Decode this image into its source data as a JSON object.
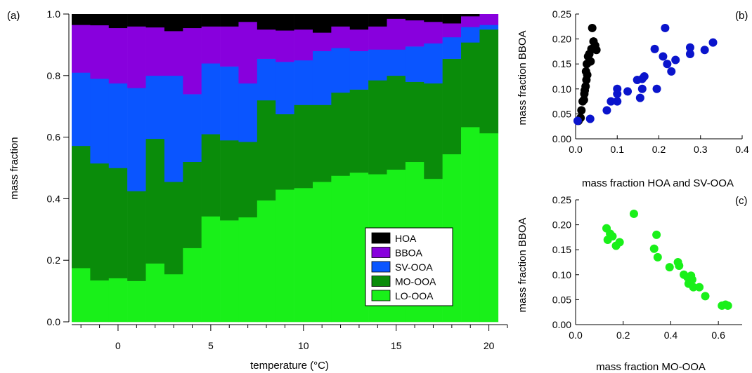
{
  "chart_data": [
    {
      "panel": "(a)",
      "type": "area",
      "stacked": true,
      "xlabel": "temperature (°C)",
      "ylabel": "mass fraction",
      "xlim": [
        -2.5,
        21
      ],
      "ylim": [
        0,
        1
      ],
      "xticks": [
        0,
        5,
        10,
        15,
        20
      ],
      "yticks": [
        0.0,
        0.2,
        0.4,
        0.6,
        0.8,
        1.0
      ],
      "ytick_labels": [
        "0.0",
        "0.2",
        "0.4",
        "0.6",
        "0.8",
        "1.0"
      ],
      "x": [
        -2,
        -1,
        0,
        1,
        2,
        3,
        4,
        5,
        6,
        7,
        8,
        9,
        10,
        11,
        12,
        13,
        14,
        15,
        16,
        17,
        18,
        19,
        20
      ],
      "series": [
        {
          "name": "LO-OOA",
          "color": "#19f019",
          "values": [
            0.175,
            0.135,
            0.142,
            0.133,
            0.19,
            0.155,
            0.24,
            0.343,
            0.33,
            0.34,
            0.395,
            0.43,
            0.435,
            0.455,
            0.475,
            0.485,
            0.48,
            0.495,
            0.52,
            0.465,
            0.545,
            0.633,
            0.613
          ]
        },
        {
          "name": "MO-OOA",
          "color": "#0a8c0a",
          "values": [
            0.397,
            0.38,
            0.358,
            0.292,
            0.405,
            0.3,
            0.28,
            0.267,
            0.26,
            0.245,
            0.325,
            0.245,
            0.27,
            0.25,
            0.27,
            0.27,
            0.305,
            0.305,
            0.26,
            0.31,
            0.31,
            0.275,
            0.337
          ]
        },
        {
          "name": "SV-OOA",
          "color": "#0a55ff",
          "values": [
            0.238,
            0.275,
            0.275,
            0.335,
            0.205,
            0.345,
            0.22,
            0.23,
            0.24,
            0.19,
            0.135,
            0.17,
            0.145,
            0.175,
            0.145,
            0.125,
            0.1,
            0.085,
            0.115,
            0.13,
            0.07,
            0.05,
            0.015
          ]
        },
        {
          "name": "BBOA",
          "color": "#8800dd",
          "values": [
            0.155,
            0.174,
            0.18,
            0.2,
            0.157,
            0.145,
            0.215,
            0.12,
            0.13,
            0.2,
            0.095,
            0.102,
            0.1,
            0.06,
            0.07,
            0.07,
            0.075,
            0.1,
            0.085,
            0.07,
            0.045,
            0.035,
            0.035
          ]
        },
        {
          "name": "HOA",
          "color": "#000000",
          "values": [
            0.035,
            0.036,
            0.045,
            0.04,
            0.043,
            0.055,
            0.045,
            0.04,
            0.04,
            0.025,
            0.05,
            0.053,
            0.05,
            0.06,
            0.04,
            0.05,
            0.04,
            0.015,
            0.02,
            0.025,
            0.03,
            0.007,
            0.0
          ]
        }
      ],
      "legend": {
        "position": "bottom-right",
        "order": [
          "HOA",
          "BBOA",
          "SV-OOA",
          "MO-OOA",
          "LO-OOA"
        ]
      }
    },
    {
      "panel": "(b)",
      "type": "scatter",
      "xlabel": "mass fraction HOA and SV-OOA",
      "ylabel": "mass fraction BBOA",
      "xlim": [
        0,
        0.4
      ],
      "ylim": [
        0,
        0.25
      ],
      "xticks": [
        0.0,
        0.1,
        0.2,
        0.3,
        0.4
      ],
      "xtick_labels": [
        "0.0",
        "0.1",
        "0.2",
        "0.3",
        "0.4"
      ],
      "yticks": [
        0.0,
        0.05,
        0.1,
        0.15,
        0.2,
        0.25
      ],
      "ytick_labels": [
        "0.00",
        "0.05",
        "0.10",
        "0.15",
        "0.20",
        "0.25"
      ],
      "series": [
        {
          "name": "HOA",
          "color": "#000000",
          "points": [
            [
              0.007,
              0.036
            ],
            [
              0.012,
              0.042
            ],
            [
              0.014,
              0.057
            ],
            [
              0.017,
              0.075
            ],
            [
              0.02,
              0.078
            ],
            [
              0.021,
              0.09
            ],
            [
              0.022,
              0.097
            ],
            [
              0.024,
              0.105
            ],
            [
              0.026,
              0.118
            ],
            [
              0.025,
              0.135
            ],
            [
              0.028,
              0.128
            ],
            [
              0.027,
              0.15
            ],
            [
              0.03,
              0.165
            ],
            [
              0.033,
              0.17
            ],
            [
              0.036,
              0.155
            ],
            [
              0.038,
              0.18
            ],
            [
              0.041,
              0.18
            ],
            [
              0.043,
              0.195
            ],
            [
              0.047,
              0.187
            ],
            [
              0.05,
              0.178
            ],
            [
              0.04,
              0.222
            ]
          ]
        },
        {
          "name": "SV-OOA",
          "color": "#0a14cc",
          "points": [
            [
              0.005,
              0.036
            ],
            [
              0.035,
              0.04
            ],
            [
              0.075,
              0.057
            ],
            [
              0.085,
              0.075
            ],
            [
              0.1,
              0.075
            ],
            [
              0.1,
              0.1
            ],
            [
              0.1,
              0.09
            ],
            [
              0.125,
              0.095
            ],
            [
              0.148,
              0.118
            ],
            [
              0.155,
              0.082
            ],
            [
              0.16,
              0.12
            ],
            [
              0.16,
              0.1
            ],
            [
              0.165,
              0.125
            ],
            [
              0.19,
              0.18
            ],
            [
              0.195,
              0.1
            ],
            [
              0.21,
              0.165
            ],
            [
              0.215,
              0.222
            ],
            [
              0.22,
              0.15
            ],
            [
              0.23,
              0.135
            ],
            [
              0.24,
              0.158
            ],
            [
              0.275,
              0.183
            ],
            [
              0.275,
              0.17
            ],
            [
              0.31,
              0.178
            ],
            [
              0.33,
              0.193
            ]
          ]
        }
      ]
    },
    {
      "panel": "(c)",
      "type": "scatter",
      "xlabel": "mass fraction MO-OOA",
      "ylabel": "mass fraction BBOA",
      "xlim": [
        0,
        0.7
      ],
      "ylim": [
        0,
        0.25
      ],
      "xticks": [
        0.0,
        0.2,
        0.4,
        0.6
      ],
      "xtick_labels": [
        "0.0",
        "0.2",
        "0.4",
        "0.6"
      ],
      "yticks": [
        0.0,
        0.05,
        0.1,
        0.15,
        0.2,
        0.25
      ],
      "ytick_labels": [
        "0.00",
        "0.05",
        "0.10",
        "0.15",
        "0.20",
        "0.25"
      ],
      "series": [
        {
          "name": "MO-OOA",
          "color": "#19f019",
          "points": [
            [
              0.13,
              0.193
            ],
            [
              0.135,
              0.17
            ],
            [
              0.145,
              0.182
            ],
            [
              0.155,
              0.177
            ],
            [
              0.17,
              0.158
            ],
            [
              0.185,
              0.165
            ],
            [
              0.245,
              0.222
            ],
            [
              0.33,
              0.152
            ],
            [
              0.34,
              0.18
            ],
            [
              0.345,
              0.135
            ],
            [
              0.395,
              0.115
            ],
            [
              0.43,
              0.125
            ],
            [
              0.435,
              0.118
            ],
            [
              0.455,
              0.1
            ],
            [
              0.47,
              0.095
            ],
            [
              0.475,
              0.082
            ],
            [
              0.485,
              0.098
            ],
            [
              0.49,
              0.09
            ],
            [
              0.495,
              0.075
            ],
            [
              0.52,
              0.075
            ],
            [
              0.545,
              0.057
            ],
            [
              0.615,
              0.038
            ],
            [
              0.63,
              0.04
            ],
            [
              0.64,
              0.038
            ]
          ]
        }
      ]
    }
  ]
}
